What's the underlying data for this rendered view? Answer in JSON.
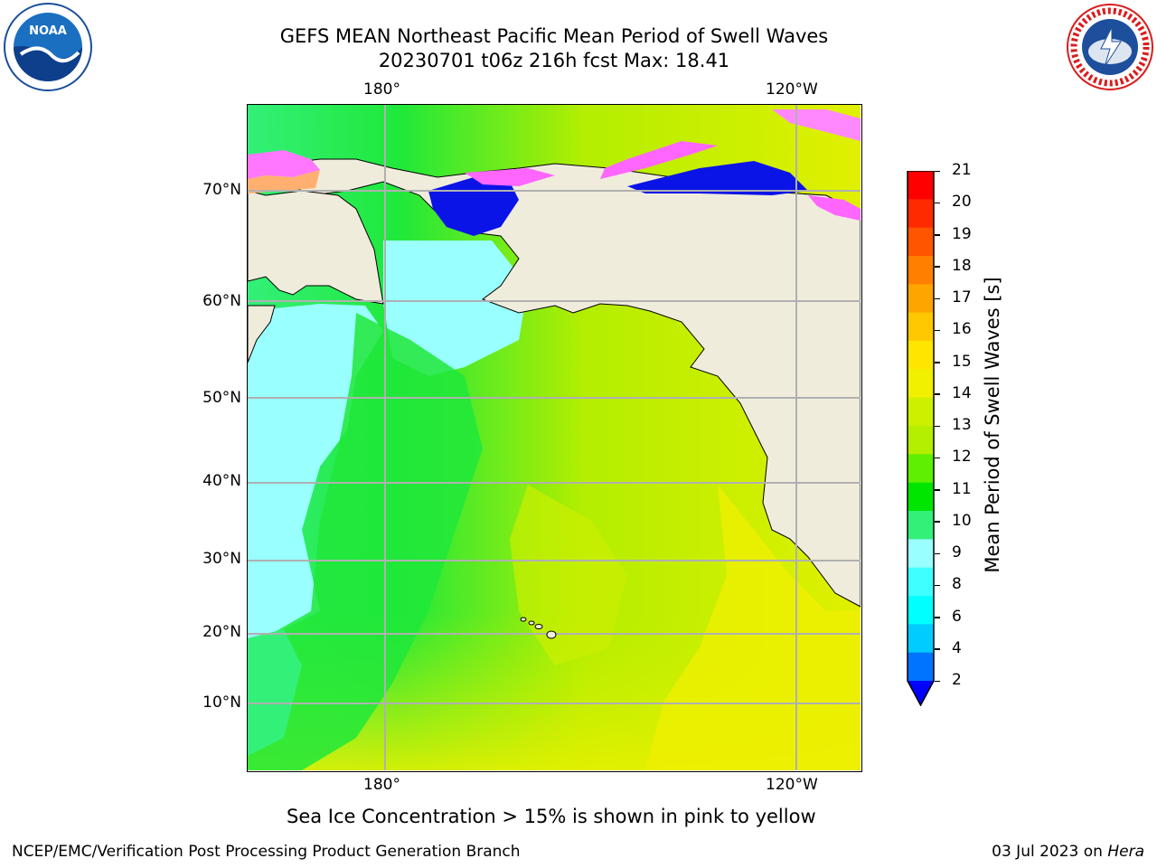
{
  "header": {
    "title_line1": "GEFS MEAN Northeast Pacific Mean Period of Swell Waves",
    "title_line2": "20230701 t06z 216h fcst   Max: 18.41"
  },
  "logos": {
    "left": "noaa-logo",
    "right": "national-weather-service-logo"
  },
  "map": {
    "lon_labels_top": [
      "180°",
      "120°W"
    ],
    "lon_labels_bottom": [
      "180°",
      "120°W"
    ],
    "lat_labels": [
      "70°N",
      "60°N",
      "50°N",
      "40°N",
      "30°N",
      "20°N",
      "10°N"
    ],
    "land_color": "#efecdc",
    "grid_color": "#b0b0b0"
  },
  "colorbar": {
    "label": "Mean Period of Swell Waves [s]",
    "ticks": [
      "21",
      "20",
      "19",
      "18",
      "17",
      "16",
      "15",
      "14",
      "13",
      "12",
      "11",
      "10",
      "9",
      "8",
      "6",
      "4",
      "2"
    ],
    "colors_top_to_bottom": [
      "#ff0000",
      "#ff2a00",
      "#ff5500",
      "#ff7f00",
      "#ffa500",
      "#ffc800",
      "#ffe600",
      "#f0f000",
      "#ccf000",
      "#b4ee00",
      "#5ef000",
      "#00e600",
      "#33f078",
      "#99ffff",
      "#40ffff",
      "#00ffff",
      "#00ccff",
      "#0073ff"
    ],
    "extend_color": "#0000ff"
  },
  "note": "Sea Ice Concentration > 15% is shown in pink to yellow",
  "footer": {
    "left": "NCEP/EMC/Verification Post Processing Product Generation Branch",
    "right_prefix": "03 Jul 2023 on ",
    "right_italic": "Hera"
  }
}
